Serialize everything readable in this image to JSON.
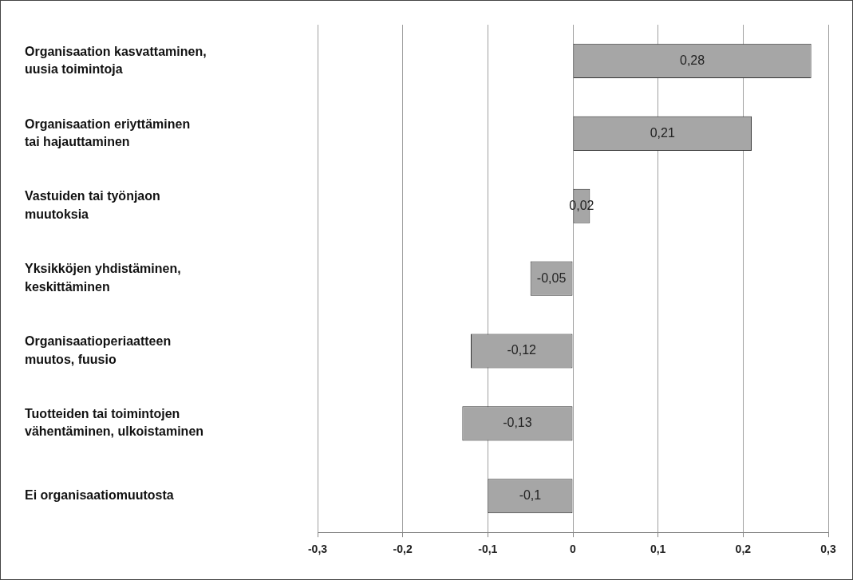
{
  "chart_data": {
    "type": "bar",
    "orientation": "horizontal",
    "categories": [
      "Organisaation kasvattaminen,\nuusia toimintoja",
      "Organisaation eriyttäminen\ntai hajauttaminen",
      "Vastuiden tai työnjaon\nmuutoksia",
      "Yksikköjen yhdistäminen,\nkeskittäminen",
      "Organisaatioperiaatteen\nmuutos, fuusio",
      "Tuotteiden tai toimintojen\nvähentäminen, ulkoistaminen",
      "Ei organisaatiomuutosta"
    ],
    "values": [
      0.28,
      0.21,
      0.02,
      -0.05,
      -0.12,
      -0.13,
      -0.1
    ],
    "value_labels": [
      "0,28",
      "0,21",
      "0,02",
      "-0,05",
      "-0,12",
      "-0,13",
      "-0,1"
    ],
    "color": "#a6a6a6",
    "xlim": [
      -0.3,
      0.3
    ],
    "xticks": [
      {
        "value": -0.3,
        "label": "-0,3"
      },
      {
        "value": -0.2,
        "label": "-0,2"
      },
      {
        "value": -0.1,
        "label": "-0,1"
      },
      {
        "value": 0,
        "label": "0"
      },
      {
        "value": 0.1,
        "label": "0,1"
      },
      {
        "value": 0.2,
        "label": "0,2"
      },
      {
        "value": 0.3,
        "label": "0,3"
      }
    ],
    "grid": "x",
    "legend": false
  }
}
